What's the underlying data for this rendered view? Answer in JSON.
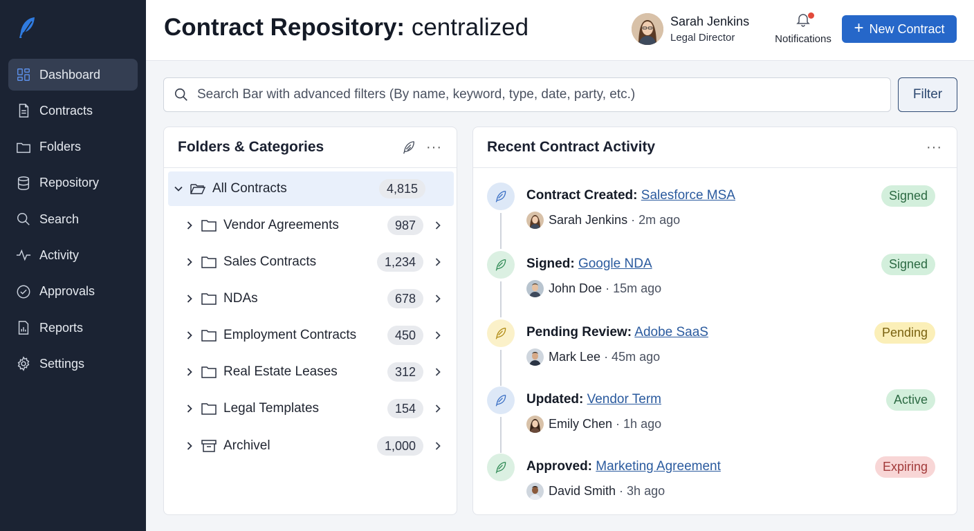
{
  "header": {
    "title_bold": "Contract Repository:",
    "title_light": "centralized",
    "user": {
      "name": "Sarah Jenkins",
      "role": "Legal Director"
    },
    "notifications_label": "Notifications",
    "new_contract_label": "New Contract"
  },
  "sidebar": {
    "logo_icon": "feather-logo-icon",
    "items": [
      {
        "label": "Dashboard",
        "icon": "dashboard-icon",
        "active": true
      },
      {
        "label": "Contracts",
        "icon": "document-icon"
      },
      {
        "label": "Folders",
        "icon": "folder-icon"
      },
      {
        "label": "Repository",
        "icon": "database-icon"
      },
      {
        "label": "Search",
        "icon": "search-icon"
      },
      {
        "label": "Activity",
        "icon": "pulse-icon"
      },
      {
        "label": "Approvals",
        "icon": "check-circle-icon"
      },
      {
        "label": "Reports",
        "icon": "report-icon"
      },
      {
        "label": "Settings",
        "icon": "gear-icon"
      }
    ]
  },
  "search": {
    "placeholder": "Search Bar with advanced filters (By name, keyword, type, date, party, etc.)",
    "filter_label": "Filter"
  },
  "folders": {
    "title": "Folders & Categories",
    "more": "···",
    "root": {
      "label": "All Contracts",
      "count": "4,815"
    },
    "items": [
      {
        "label": "Vendor Agreements",
        "count": "987"
      },
      {
        "label": "Sales Contracts",
        "count": "1,234"
      },
      {
        "label": "NDAs",
        "count": "678"
      },
      {
        "label": "Employment Contracts",
        "count": "450"
      },
      {
        "label": "Real Estate Leases",
        "count": "312"
      },
      {
        "label": "Legal Templates",
        "count": "154"
      },
      {
        "label": "Archivel",
        "count": "1,000",
        "icon": "archive-icon"
      }
    ]
  },
  "activity": {
    "title": "Recent Contract Activity",
    "more": "···",
    "items": [
      {
        "action": "Contract Created:",
        "link": "Salesforce MSA",
        "user": "Sarah Jenkins",
        "time": "· 2m ago",
        "status": "Signed",
        "icon_bg": "#dde8f7",
        "icon_color": "#3a6fc4",
        "badge_bg": "#d3efdc",
        "badge_color": "#2c6a43"
      },
      {
        "action": "Signed:",
        "link": "Google NDA",
        "user": "John Doe",
        "time": "· 15m ago",
        "status": "Signed",
        "icon_bg": "#dbf0e2",
        "icon_color": "#2f8a55",
        "badge_bg": "#d3efdc",
        "badge_color": "#2c6a43"
      },
      {
        "action": "Pending Review:",
        "link": "Adobe SaaS",
        "user": "Mark Lee",
        "time": "· 45m ago",
        "status": "Pending",
        "icon_bg": "#fbf1c9",
        "icon_color": "#b08a12",
        "badge_bg": "#fbefb8",
        "badge_color": "#7a6210"
      },
      {
        "action": "Updated:",
        "link": "Vendor Term",
        "user": "Emily Chen",
        "time": "· 1h ago",
        "status": "Active",
        "icon_bg": "#dde8f7",
        "icon_color": "#3a6fc4",
        "badge_bg": "#d3efdc",
        "badge_color": "#2c6a43"
      },
      {
        "action": "Approved:",
        "link": "Marketing Agreement",
        "user": "David Smith",
        "time": "· 3h ago",
        "status": "Expiring",
        "icon_bg": "#dbf0e2",
        "icon_color": "#2f8a55",
        "badge_bg": "#f8d6d6",
        "badge_color": "#a23a3a"
      }
    ]
  }
}
